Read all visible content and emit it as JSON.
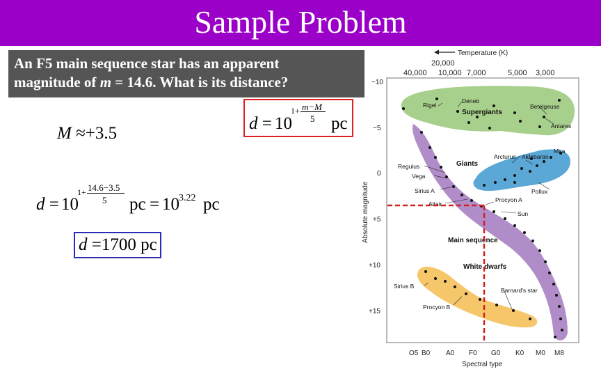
{
  "header": {
    "title": "Sample Problem",
    "bg_color": "#9a00c8"
  },
  "question": {
    "line1": "An F5 main sequence star has an apparent",
    "line2_pre": "magnitude of ",
    "line2_m": "m",
    "line2_post": " = 14.6.  What is its distance?"
  },
  "formula": {
    "d": "d",
    "eq": "=",
    "base": "10",
    "exp_pre": "1+",
    "num": "m−M",
    "den": "5",
    "unit": "pc"
  },
  "step1": {
    "lhs": "M",
    "rel": "≈",
    "rhs": "+3.5"
  },
  "step2": {
    "d": "d",
    "eq": "=",
    "base": "10",
    "exp_pre": "1+",
    "num": "14.6−3.5",
    "den": "5",
    "unit1": "pc",
    "eq2": "=",
    "base2": "10",
    "exp2": "3.22",
    "unit2": "pc"
  },
  "answer": {
    "d": "d",
    "eq": "=",
    "value": "1700",
    "unit": "pc"
  },
  "hr": {
    "temp_title": "Temperature (K)",
    "temp_ticks": [
      "40,000",
      "20,000",
      "10,000",
      "7,000",
      "5,000",
      "3,000"
    ],
    "mag_title": "Absolute magnitude",
    "mag_ticks": [
      "−10",
      "−5",
      "0",
      "+5",
      "+10",
      "+15"
    ],
    "spec_title": "Spectral type",
    "spec_ticks": [
      "O5",
      "B0",
      "A0",
      "F0",
      "G0",
      "K0",
      "M0",
      "M8"
    ],
    "regions": {
      "supergiants": "Supergiants",
      "giants": "Giants",
      "main": "Main sequence",
      "dwarfs": "White dwarfs"
    },
    "stars": [
      "Rigel",
      "Deneb",
      "Betelgeuse",
      "Antares",
      "Regulus",
      "Vega",
      "Sirius A",
      "Altair",
      "Arcturus",
      "Aldebaran",
      "Mira",
      "Pollux",
      "Procyon A",
      "Sun",
      "Sirius B",
      "Procyon B",
      "Barnard's star"
    ],
    "colors": {
      "supergiants": "#a8d08d",
      "giants": "#5ba8d6",
      "main": "#b08cc8",
      "dwarfs": "#f5c76a",
      "guide": "#d42020"
    }
  }
}
